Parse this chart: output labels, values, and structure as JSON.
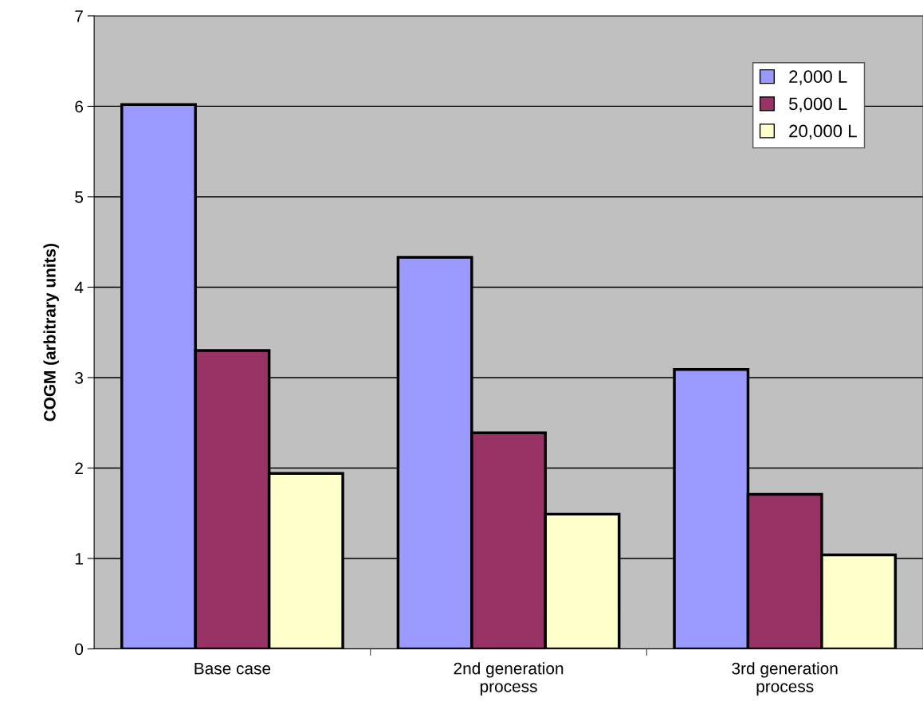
{
  "chart_data": {
    "type": "bar",
    "ylabel": "COGM (arbitrary units)",
    "categories": [
      "Base case",
      "2nd generation\nprocess",
      "3rd generation\nprocess"
    ],
    "series": [
      {
        "name": "2,000 L",
        "color": "#9999ff",
        "values": [
          6.02,
          4.33,
          3.09
        ]
      },
      {
        "name": "5,000 L",
        "color": "#993366",
        "values": [
          3.3,
          2.39,
          1.71
        ]
      },
      {
        "name": "20,000 L",
        "color": "#ffffcc",
        "values": [
          1.94,
          1.49,
          1.04
        ]
      }
    ],
    "ylim": [
      0,
      7
    ],
    "yticks": [
      0,
      1,
      2,
      3,
      4,
      5,
      6,
      7
    ],
    "grid": "y",
    "legend": "top right"
  }
}
